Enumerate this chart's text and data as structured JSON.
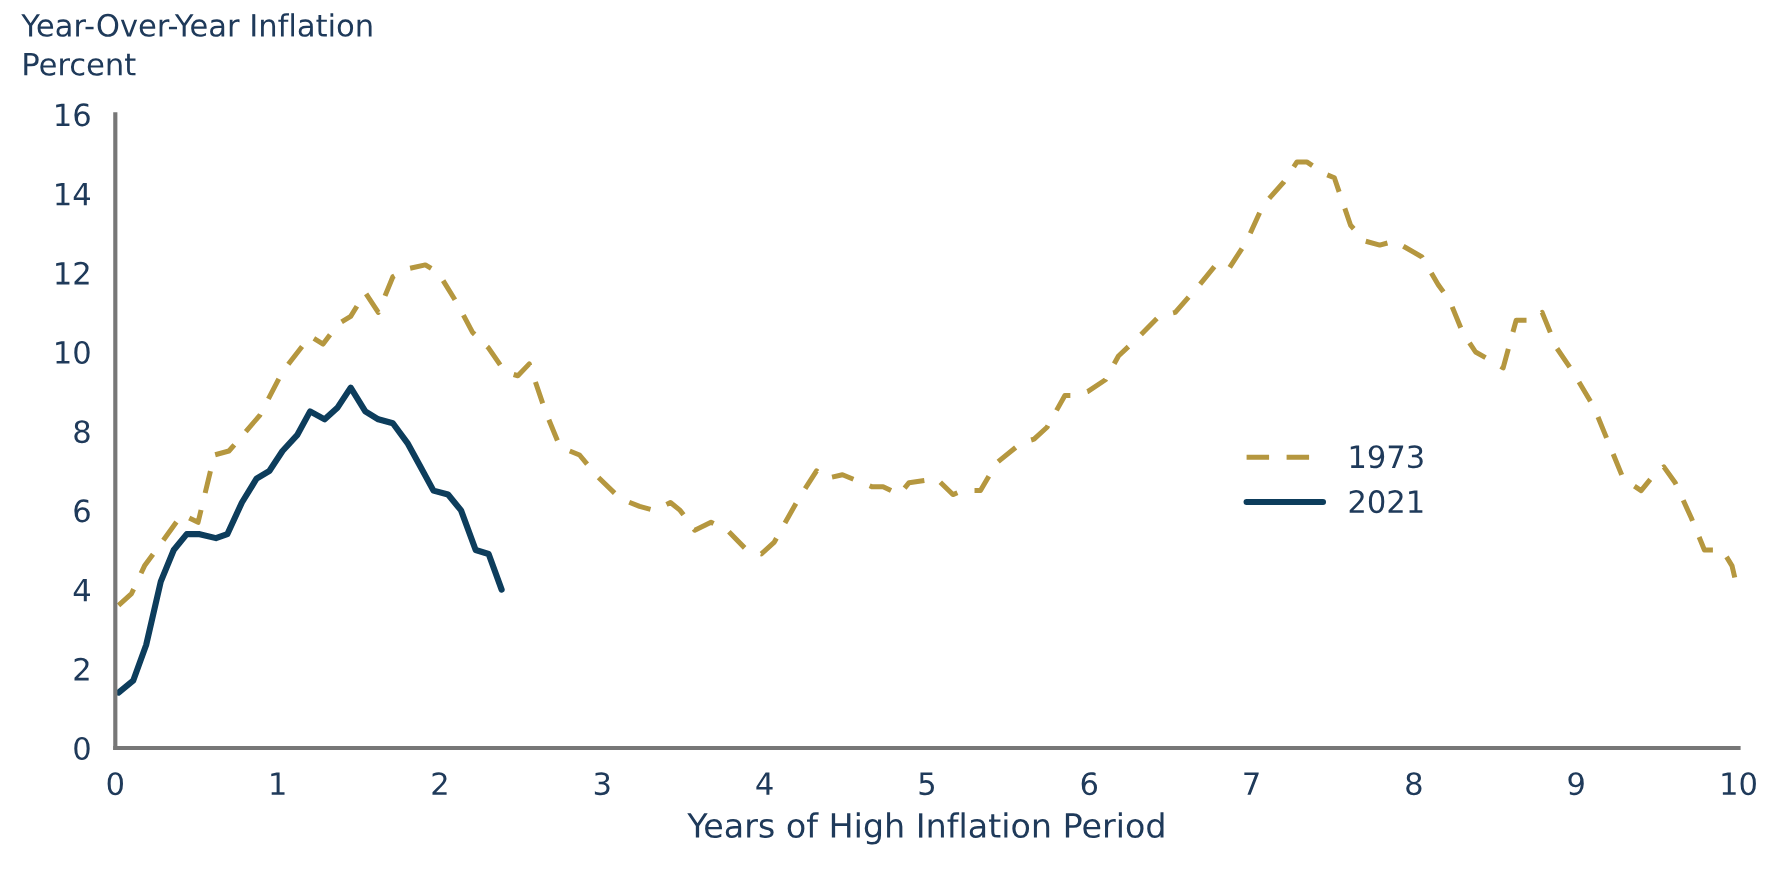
{
  "chart_data": {
    "type": "line",
    "ylabel": "Year-Over-Year Inflation\nPercent",
    "xlabel": "Years of High Inflation Period",
    "xlim": [
      0,
      10
    ],
    "xticks": [
      0,
      1,
      2,
      3,
      4,
      5,
      6,
      7,
      8,
      9,
      10
    ],
    "ylim": [
      0,
      16
    ],
    "yticks": [
      0,
      2,
      4,
      6,
      8,
      10,
      12,
      14,
      16
    ],
    "grid": false,
    "legend": "right",
    "marker": "none",
    "series": [
      {
        "name": "1973",
        "color": "#b5973f",
        "line_style": "dashed",
        "x": [
          0.02,
          0.1,
          0.18,
          0.27,
          0.41,
          0.51,
          0.61,
          0.7,
          0.89,
          1.03,
          1.2,
          1.28,
          1.37,
          1.45,
          1.54,
          1.62,
          1.71,
          1.8,
          1.91,
          1.99,
          2.11,
          2.2,
          2.3,
          2.4,
          2.48,
          2.55,
          2.65,
          2.74,
          2.86,
          2.96,
          3.11,
          3.23,
          3.32,
          3.42,
          3.48,
          3.57,
          3.67,
          3.77,
          3.89,
          3.98,
          4.06,
          4.21,
          4.32,
          4.37,
          4.48,
          4.54,
          4.66,
          4.73,
          4.83,
          4.89,
          5.06,
          5.16,
          5.22,
          5.33,
          5.43,
          5.58,
          5.66,
          5.74,
          5.85,
          5.91,
          5.99,
          6.1,
          6.18,
          6.31,
          6.43,
          6.53,
          6.68,
          6.78,
          6.86,
          6.97,
          7.07,
          7.2,
          7.28,
          7.34,
          7.45,
          7.51,
          7.61,
          7.7,
          7.79,
          7.88,
          8.05,
          8.15,
          8.22,
          8.3,
          8.38,
          8.51,
          8.55,
          8.63,
          8.73,
          8.79,
          8.88,
          8.98,
          9.11,
          9.21,
          9.29,
          9.4,
          9.48,
          9.54,
          9.61,
          9.71,
          9.79,
          9.9,
          9.96,
          10.0
        ],
        "values": [
          3.6,
          3.9,
          4.6,
          5.1,
          5.9,
          5.7,
          7.4,
          7.5,
          8.4,
          9.5,
          10.4,
          10.2,
          10.7,
          10.9,
          11.5,
          11.0,
          11.9,
          12.1,
          12.2,
          12.0,
          11.2,
          10.5,
          10.1,
          9.5,
          9.4,
          9.7,
          8.5,
          7.6,
          7.4,
          6.9,
          6.3,
          6.1,
          6.0,
          6.2,
          6.0,
          5.5,
          5.7,
          5.5,
          5.0,
          4.9,
          5.2,
          6.3,
          7.0,
          6.8,
          6.9,
          6.8,
          6.6,
          6.6,
          6.4,
          6.7,
          6.8,
          6.4,
          6.5,
          6.5,
          7.2,
          7.7,
          7.8,
          8.1,
          8.9,
          8.9,
          9.0,
          9.3,
          9.9,
          10.4,
          10.9,
          11.0,
          11.7,
          12.2,
          12.1,
          12.8,
          13.7,
          14.3,
          14.8,
          14.8,
          14.5,
          14.4,
          13.2,
          12.8,
          12.7,
          12.8,
          12.4,
          11.7,
          11.3,
          10.5,
          10.0,
          9.7,
          9.6,
          10.8,
          10.8,
          11.0,
          10.1,
          9.5,
          8.6,
          7.6,
          6.8,
          6.5,
          6.9,
          7.1,
          6.7,
          5.8,
          5.0,
          5.0,
          4.6,
          3.9
        ]
      },
      {
        "name": "2021",
        "color": "#0d3d5c",
        "line_style": "solid",
        "x": [
          0.02,
          0.11,
          0.19,
          0.28,
          0.36,
          0.44,
          0.52,
          0.62,
          0.69,
          0.78,
          0.87,
          0.95,
          1.03,
          1.12,
          1.2,
          1.29,
          1.37,
          1.45,
          1.54,
          1.62,
          1.71,
          1.8,
          1.88,
          1.96,
          2.05,
          2.13,
          2.22,
          2.3,
          2.38
        ],
        "values": [
          1.4,
          1.7,
          2.6,
          4.2,
          5.0,
          5.4,
          5.4,
          5.3,
          5.4,
          6.2,
          6.8,
          7.0,
          7.5,
          7.9,
          8.5,
          8.3,
          8.6,
          9.1,
          8.5,
          8.3,
          8.2,
          7.7,
          7.1,
          6.5,
          6.4,
          6.0,
          5.0,
          4.9,
          4.0
        ]
      }
    ]
  }
}
